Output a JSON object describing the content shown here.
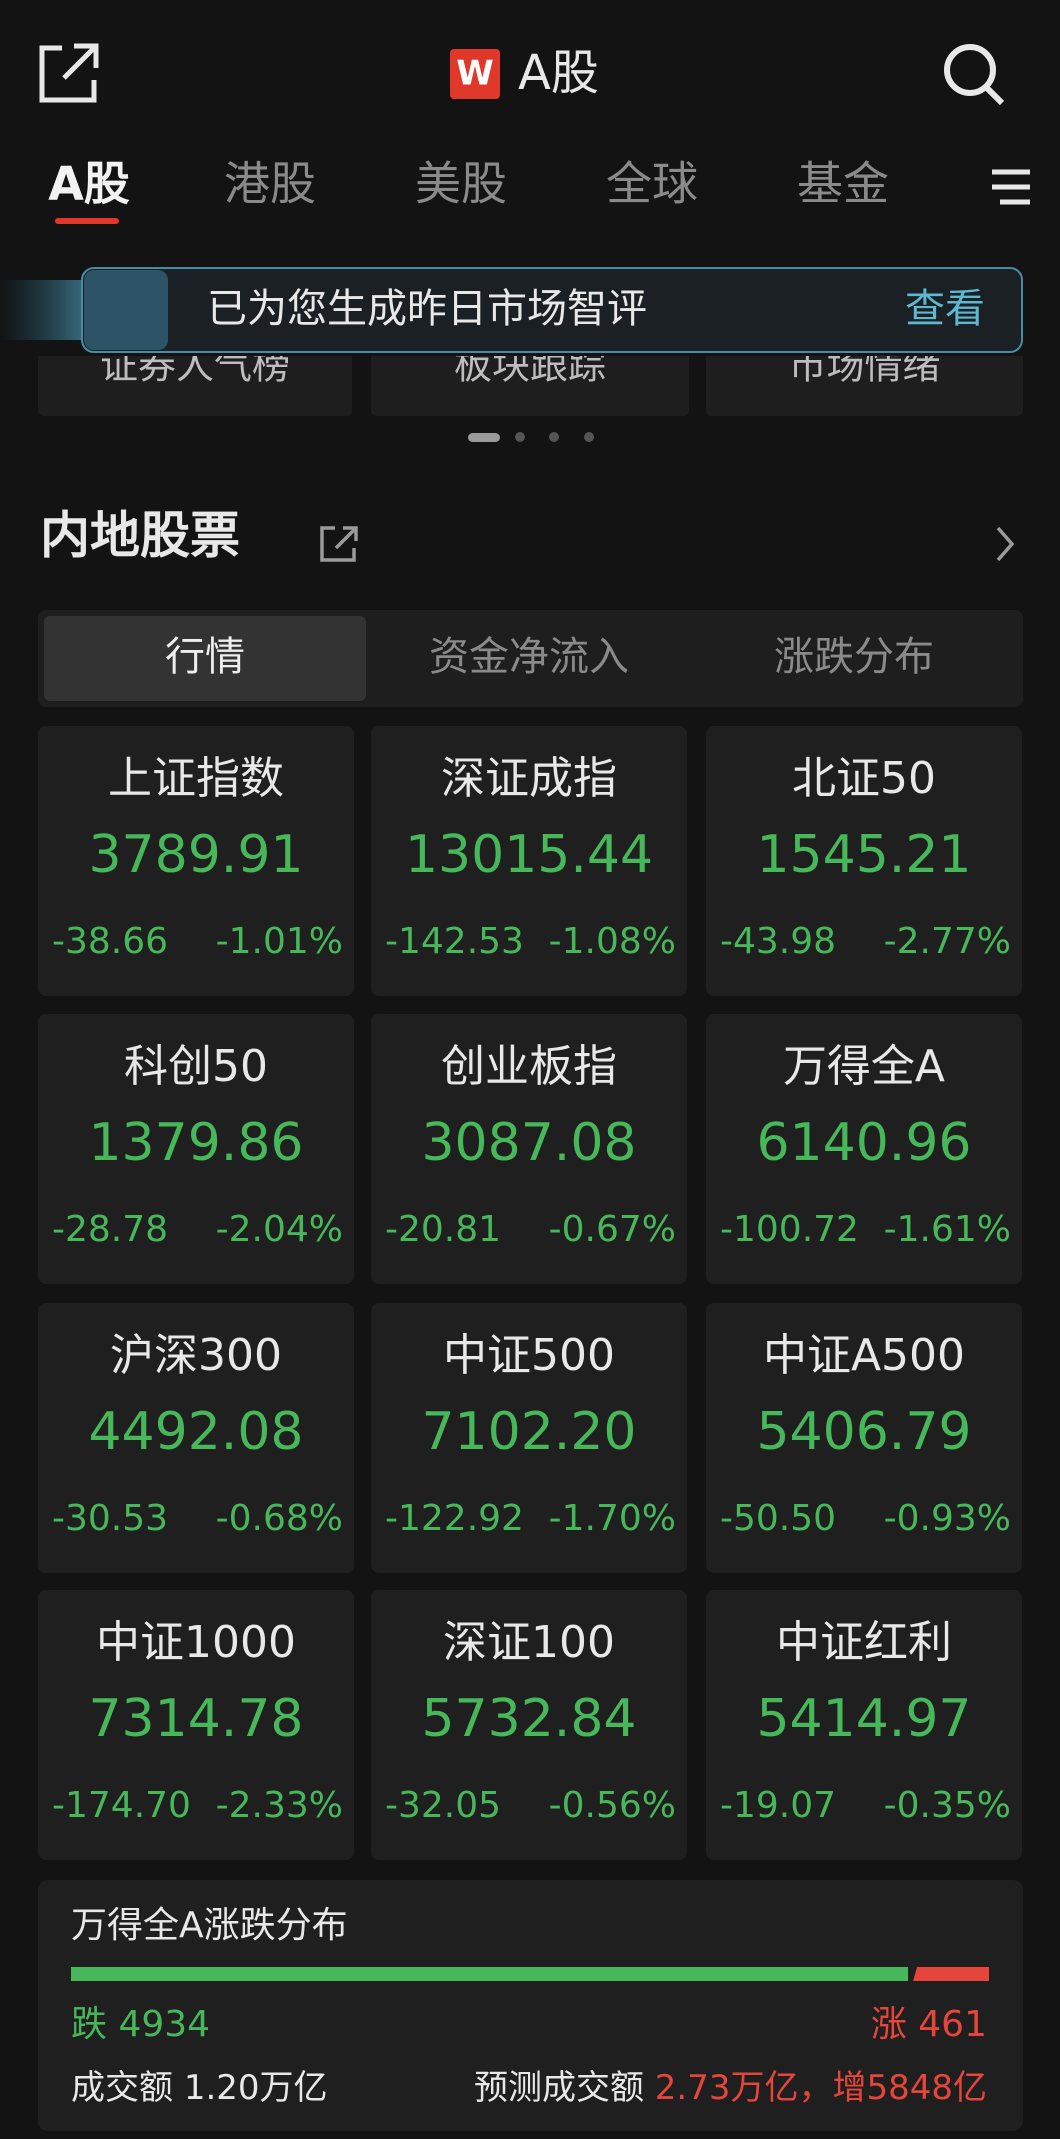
{
  "header": {
    "logo": "W",
    "title": "A股"
  },
  "tabs": [
    "A股",
    "港股",
    "美股",
    "全球",
    "基金"
  ],
  "banner": {
    "text": "已为您生成昨日市场智评",
    "action": "查看"
  },
  "shortcuts": [
    "证券人气榜",
    "板块跟踪",
    "市场情绪"
  ],
  "section": {
    "title": "内地股票",
    "segments": [
      "行情",
      "资金净流入",
      "涨跌分布"
    ]
  },
  "indices": [
    {
      "name": "上证指数",
      "value": "3789.91",
      "change": "-38.66",
      "pct": "-1.01%"
    },
    {
      "name": "深证成指",
      "value": "13015.44",
      "change": "-142.53",
      "pct": "-1.08%"
    },
    {
      "name": "北证50",
      "value": "1545.21",
      "change": "-43.98",
      "pct": "-2.77%"
    },
    {
      "name": "科创50",
      "value": "1379.86",
      "change": "-28.78",
      "pct": "-2.04%"
    },
    {
      "name": "创业板指",
      "value": "3087.08",
      "change": "-20.81",
      "pct": "-0.67%"
    },
    {
      "name": "万得全A",
      "value": "6140.96",
      "change": "-100.72",
      "pct": "-1.61%"
    },
    {
      "name": "沪深300",
      "value": "4492.08",
      "change": "-30.53",
      "pct": "-0.68%"
    },
    {
      "name": "中证500",
      "value": "7102.20",
      "change": "-122.92",
      "pct": "-1.70%"
    },
    {
      "name": "中证A500",
      "value": "5406.79",
      "change": "-50.50",
      "pct": "-0.93%"
    },
    {
      "name": "中证1000",
      "value": "7314.78",
      "change": "-174.70",
      "pct": "-2.33%"
    },
    {
      "name": "深证100",
      "value": "5732.84",
      "change": "-32.05",
      "pct": "-0.56%"
    },
    {
      "name": "中证红利",
      "value": "5414.97",
      "change": "-19.07",
      "pct": "-0.35%"
    }
  ],
  "breadth": {
    "title": "万得全A涨跌分布",
    "down": {
      "label": "跌",
      "count": 4934
    },
    "up": {
      "label": "涨",
      "count": 461
    },
    "turnover": {
      "label": "成交额",
      "value": "1.20万亿"
    },
    "forecast": {
      "label": "预测成交额",
      "value": "2.73万亿，增5848亿"
    }
  }
}
